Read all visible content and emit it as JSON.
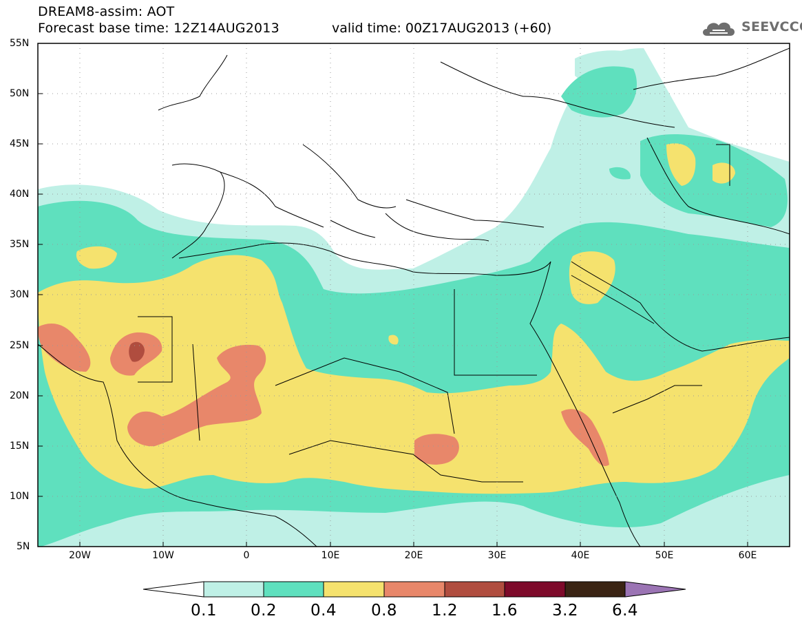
{
  "header": {
    "title_line1": "DREAM8-assim: AOT",
    "title_line2": "Forecast base time: 12Z14AUG2013",
    "valid_time": "valid time: 00Z17AUG2013 (+60)"
  },
  "logo": {
    "text": "SEEVCCC",
    "icon": "cloud-icon"
  },
  "map": {
    "lon_range": [
      -25,
      65
    ],
    "lat_range": [
      5,
      55
    ],
    "lat_labels": [
      "55N",
      "50N",
      "45N",
      "40N",
      "35N",
      "30N",
      "25N",
      "20N",
      "15N",
      "10N",
      "5N"
    ],
    "lon_labels": [
      "20W",
      "10W",
      "0",
      "10E",
      "20E",
      "30E",
      "40E",
      "50E",
      "60E"
    ],
    "grid": true
  },
  "colorbar": {
    "labels": [
      "0.1",
      "0.2",
      "0.4",
      "0.8",
      "1.2",
      "1.6",
      "3.2",
      "6.4"
    ],
    "colors": [
      "#ffffff",
      "#bff0e6",
      "#5fe0be",
      "#f5e26e",
      "#e8876a",
      "#b04d3f",
      "#7d0a2a",
      "#3a2414",
      "#9b74b4"
    ]
  }
}
